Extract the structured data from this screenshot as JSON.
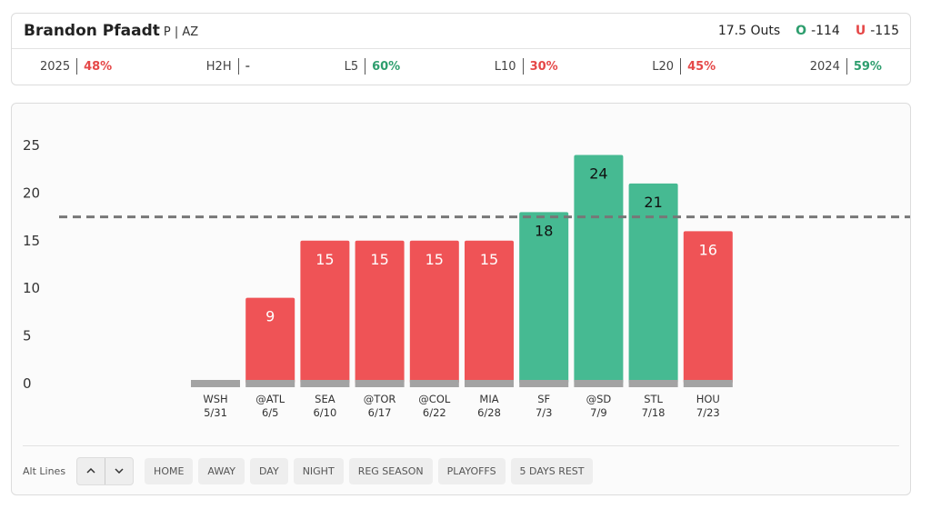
{
  "header": {
    "name": "Brandon Pfaadt",
    "position": "P | AZ",
    "line": "17.5 Outs",
    "over_label": "O",
    "over_odds": "-114",
    "under_label": "U",
    "under_odds": "-115"
  },
  "stats": [
    {
      "label": "2025",
      "value": "48%",
      "color": "#e54848"
    },
    {
      "label": "H2H",
      "value": "-",
      "color": "#777777"
    },
    {
      "label": "L5",
      "value": "60%",
      "color": "#2e9e6e"
    },
    {
      "label": "L10",
      "value": "30%",
      "color": "#e54848"
    },
    {
      "label": "L20",
      "value": "45%",
      "color": "#e54848"
    },
    {
      "label": "2024",
      "value": "59%",
      "color": "#2e9e6e"
    }
  ],
  "chart_data": {
    "type": "bar",
    "categories": [
      "WSH",
      "@ATL",
      "SEA",
      "@TOR",
      "@COL",
      "MIA",
      "SF",
      "@SD",
      "STL",
      "HOU"
    ],
    "dates": [
      "5/31",
      "6/5",
      "6/10",
      "6/17",
      "6/22",
      "6/28",
      "7/3",
      "7/9",
      "7/18",
      "7/23"
    ],
    "values": [
      0,
      9,
      15,
      15,
      15,
      15,
      18,
      24,
      21,
      16
    ],
    "line": 17.5,
    "over_color": "#46ba92",
    "under_color": "#ef5356",
    "ylim": [
      0,
      25
    ],
    "yticks": [
      0,
      5,
      10,
      15,
      20,
      25
    ]
  },
  "filters": {
    "alt_label": "Alt Lines",
    "buttons": [
      "HOME",
      "AWAY",
      "DAY",
      "NIGHT",
      "REG SEASON",
      "PLAYOFFS",
      "5 DAYS REST"
    ]
  }
}
